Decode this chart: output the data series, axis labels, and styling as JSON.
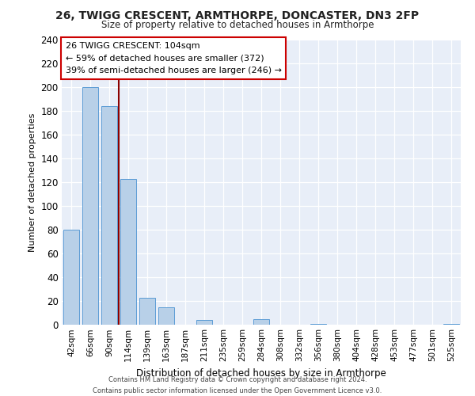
{
  "title": "26, TWIGG CRESCENT, ARMTHORPE, DONCASTER, DN3 2FP",
  "subtitle": "Size of property relative to detached houses in Armthorpe",
  "xlabel": "Distribution of detached houses by size in Armthorpe",
  "ylabel": "Number of detached properties",
  "bar_labels": [
    "42sqm",
    "66sqm",
    "90sqm",
    "114sqm",
    "139sqm",
    "163sqm",
    "187sqm",
    "211sqm",
    "235sqm",
    "259sqm",
    "284sqm",
    "308sqm",
    "332sqm",
    "356sqm",
    "380sqm",
    "404sqm",
    "428sqm",
    "453sqm",
    "477sqm",
    "501sqm",
    "525sqm"
  ],
  "bar_values": [
    80,
    200,
    184,
    123,
    23,
    15,
    0,
    4,
    0,
    0,
    5,
    0,
    0,
    1,
    0,
    0,
    0,
    0,
    0,
    0,
    1
  ],
  "bar_color": "#b8d0e8",
  "bar_edge_color": "#5b9bd5",
  "vline_x": 2.5,
  "vline_color": "#8b0000",
  "annotation_title": "26 TWIGG CRESCENT: 104sqm",
  "annotation_line1": "← 59% of detached houses are smaller (372)",
  "annotation_line2": "39% of semi-detached houses are larger (246) →",
  "annotation_box_color": "#ffffff",
  "annotation_box_edge": "#cc0000",
  "ylim": [
    0,
    240
  ],
  "yticks": [
    0,
    20,
    40,
    60,
    80,
    100,
    120,
    140,
    160,
    180,
    200,
    220,
    240
  ],
  "background_color": "#e8eef8",
  "footer_line1": "Contains HM Land Registry data © Crown copyright and database right 2024.",
  "footer_line2": "Contains public sector information licensed under the Open Government Licence v3.0."
}
